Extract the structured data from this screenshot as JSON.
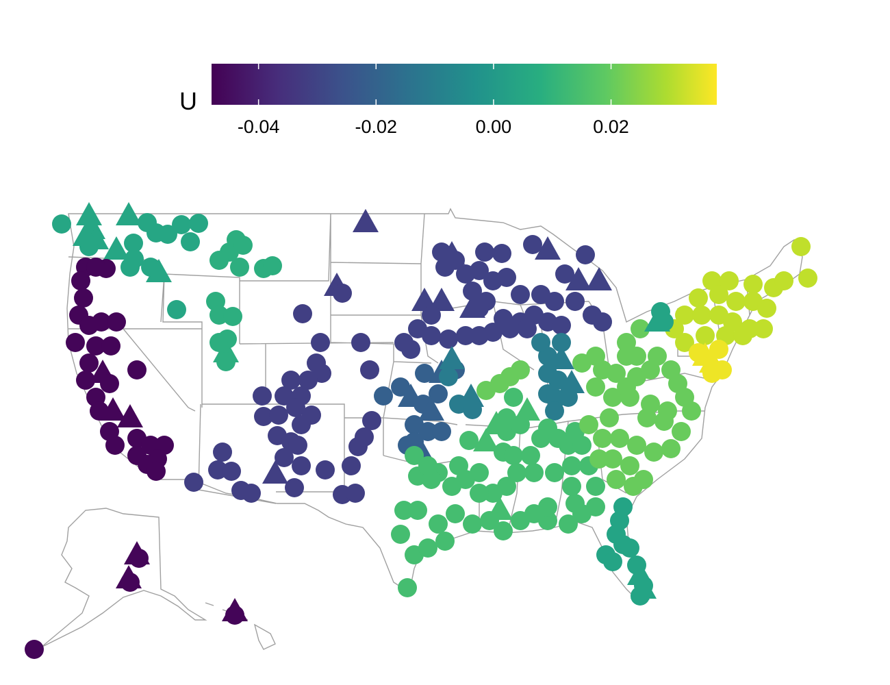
{
  "legend": {
    "title": "U",
    "ticks": [
      "-0.04",
      "-0.02",
      "0.00",
      "0.02"
    ],
    "tick_values": [
      -0.04,
      -0.02,
      0.0,
      0.02
    ],
    "range": [
      -0.048,
      0.038
    ],
    "palette": "viridis",
    "stops": [
      "#440154",
      "#3b528b",
      "#21918c",
      "#5ec962",
      "#fde725"
    ]
  },
  "map": {
    "region": "United States (contiguous, Alaska, Hawaii insets)",
    "outline_color": "#a0a0a0",
    "marker_shapes": [
      "circle",
      "triangle"
    ]
  },
  "chart_data": {
    "type": "scatter",
    "color_variable": "U",
    "color_range": [
      -0.048,
      0.038
    ],
    "groups": [
      {
        "region": "Pacific Northwest",
        "U": 0.003
      },
      {
        "region": "Northern Idaho/Montana",
        "U": 0.006
      },
      {
        "region": "California/Oregon coast",
        "U": -0.047
      },
      {
        "region": "Intermountain West",
        "U": -0.032
      },
      {
        "region": "Upper Midwest",
        "U": -0.031
      },
      {
        "region": "Central Plains",
        "U": -0.022
      },
      {
        "region": "Mississippi Valley",
        "U": -0.012
      },
      {
        "region": "Southeast",
        "U": 0.012
      },
      {
        "region": "Ohio Valley/Appalachia",
        "U": 0.018
      },
      {
        "region": "Northeast",
        "U": 0.03
      },
      {
        "region": "Mid-Atlantic coast",
        "U": 0.036
      },
      {
        "region": "Florida",
        "U": 0.002
      },
      {
        "region": "Alaska",
        "U": -0.047
      },
      {
        "region": "Hawaii",
        "U": -0.047
      }
    ]
  }
}
